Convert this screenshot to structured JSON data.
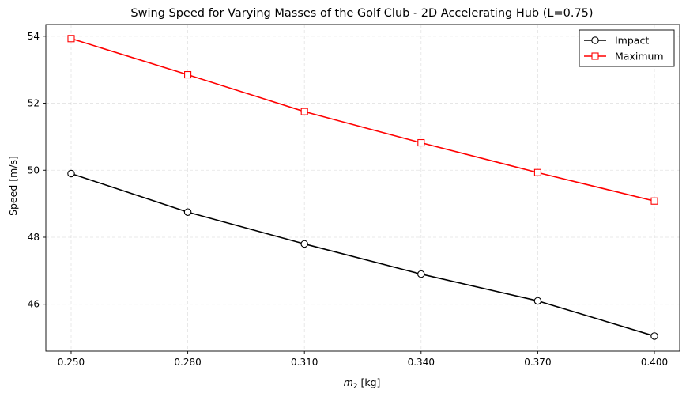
{
  "chart_data": {
    "type": "line",
    "title": "Swing Speed for Varying Masses of the Golf Club - 2D Accelerating Hub (L=0.75)",
    "xlabel_main": "m",
    "xlabel_sub": "2",
    "xlabel_rest": " [kg]",
    "ylabel": "Speed [m/s]",
    "x": [
      0.25,
      0.28,
      0.31,
      0.34,
      0.37,
      0.4
    ],
    "x_tick_labels": [
      "0.250",
      "0.280",
      "0.310",
      "0.340",
      "0.370",
      "0.400"
    ],
    "xlim": [
      0.2435,
      0.4065
    ],
    "ylim": [
      44.6,
      54.35
    ],
    "y_ticks": [
      46,
      48,
      50,
      52,
      54
    ],
    "y_tick_labels": [
      "46",
      "48",
      "50",
      "52",
      "54"
    ],
    "grid": true,
    "legend_position": "top-right",
    "series": [
      {
        "name": "Impact",
        "color": "#000000",
        "marker": "circle",
        "values": [
          49.9,
          48.75,
          47.8,
          46.9,
          46.1,
          45.05
        ]
      },
      {
        "name": "Maximum",
        "color": "#ff0000",
        "marker": "square",
        "values": [
          53.93,
          52.85,
          51.75,
          50.82,
          49.93,
          49.08
        ]
      }
    ]
  }
}
